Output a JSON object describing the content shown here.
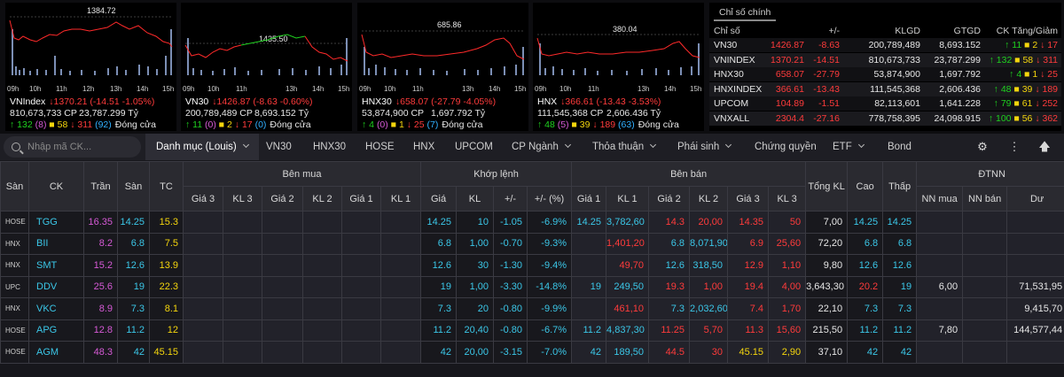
{
  "charts": [
    {
      "name": "VNIndex",
      "change": "↓1370.21 (-14.51 -1.05%)",
      "ref_label": "1384.72",
      "volume": "810,673,733 CP",
      "value": "23,787.299 Tỷ",
      "up": "↑ 132",
      "ref": "(8)",
      "ref2": "■ 58",
      "down": "↓ 311",
      "down2": "(92)",
      "status": "Đóng cửa",
      "hours": [
        "09h",
        "10h",
        "11h",
        "12h",
        "13h",
        "14h",
        "15h"
      ]
    },
    {
      "name": "VN30",
      "change": "↓1426.87 (-8.63 -0.60%)",
      "ref_label": "1435.50",
      "volume": "200,789,489 CP",
      "value": "8,693.152 Tỷ",
      "up": "↑ 11",
      "ref": "(0)",
      "ref2": "■ 2",
      "down": "↓ 17",
      "down2": "(0)",
      "status": "Đóng cửa",
      "hours": [
        "09h",
        "10h",
        "11h",
        "13h",
        "14h",
        "15h"
      ]
    },
    {
      "name": "HNX30",
      "change": "↓658.07 (-27.79 -4.05%)",
      "ref_label": "685.86",
      "volume": "53,874,900 CP",
      "value": "1,697.792 Tỷ",
      "up": "↑ 4",
      "ref": "(0)",
      "ref2": "■ 1",
      "down": "↓ 25",
      "down2": "(7)",
      "status": "Đóng cửa",
      "hours": [
        "09h",
        "10h",
        "11h",
        "13h",
        "14h",
        "15h"
      ]
    },
    {
      "name": "HNX",
      "change": "↓366.61 (-13.43 -3.53%)",
      "ref_label": "380.04",
      "volume": "111,545,368 CP",
      "value": "2,606.436 Tỷ",
      "up": "↑ 48",
      "ref": "(5)",
      "ref2": "■ 39",
      "down": "↓ 189",
      "down2": "(63)",
      "status": "Đóng cửa",
      "hours": [
        "09h",
        "10h",
        "11h",
        "13h",
        "14h",
        "15h"
      ]
    }
  ],
  "index_table": {
    "tab": "Chỉ số chính",
    "headers": {
      "name": "Chỉ số",
      "chg": "+/-",
      "klgd": "KLGD",
      "gtgd": "GTGD",
      "tg": "CK Tăng/Giảm"
    },
    "rows": [
      {
        "name": "VN30",
        "val": "1426.87",
        "chg": "-8.63",
        "klgd": "200,789,489",
        "gtgd": "8,693.152",
        "up": "↑ 11",
        "ref": "■ 2",
        "down": "↓ 17"
      },
      {
        "name": "VNINDEX",
        "val": "1370.21",
        "chg": "-14.51",
        "klgd": "810,673,733",
        "gtgd": "23,787.299",
        "up": "↑ 132",
        "ref": "■ 58",
        "down": "↓ 311"
      },
      {
        "name": "HNX30",
        "val": "658.07",
        "chg": "-27.79",
        "klgd": "53,874,900",
        "gtgd": "1,697.792",
        "up": "↑ 4",
        "ref": "■ 1",
        "down": "↓ 25"
      },
      {
        "name": "HNXINDEX",
        "val": "366.61",
        "chg": "-13.43",
        "klgd": "111,545,368",
        "gtgd": "2,606.436",
        "up": "↑ 48",
        "ref": "■ 39",
        "down": "↓ 189"
      },
      {
        "name": "UPCOM",
        "val": "104.89",
        "chg": "-1.51",
        "klgd": "82,113,601",
        "gtgd": "1,641.228",
        "up": "↑ 79",
        "ref": "■ 61",
        "down": "↓ 252"
      },
      {
        "name": "VNXALL",
        "val": "2304.4",
        "chg": "-27.16",
        "klgd": "778,758,395",
        "gtgd": "24,098.915",
        "up": "↑ 100",
        "ref": "■ 56",
        "down": "↓ 362"
      }
    ]
  },
  "toolbar": {
    "search_placeholder": "Nhập mã CK...",
    "tabs": [
      "Danh mục (Louis)",
      "VN30",
      "HNX30",
      "HOSE",
      "HNX",
      "UPCOM",
      "CP Ngành",
      "Thỏa thuận",
      "Phái sinh",
      "Chứng quyền",
      "ETF",
      "Bond"
    ]
  },
  "board": {
    "group_headers": {
      "ben_mua": "Bên mua",
      "khop_lenh": "Khớp lệnh",
      "ben_ban": "Bên bán",
      "dtnn": "ĐTNN"
    },
    "col_san": "Sàn",
    "col_ck": "CK",
    "col_tran": "Trần",
    "col_san_price": "Sàn",
    "col_tc": "TC",
    "buy_cols": [
      "Giá 3",
      "KL 3",
      "Giá 2",
      "KL 2",
      "Giá 1",
      "KL 1"
    ],
    "match_cols": [
      "Giá",
      "KL",
      "+/-",
      "+/- (%)"
    ],
    "sell_cols": [
      "Giá 1",
      "KL 1",
      "Giá 2",
      "KL 2",
      "Giá 3",
      "KL 3"
    ],
    "col_tong": "Tổng KL",
    "col_cao": "Cao",
    "col_thap": "Thấp",
    "dtnn_cols": [
      "NN mua",
      "NN bán",
      "Dư"
    ],
    "rows": [
      {
        "exch": "HOSE",
        "ck": "TGG",
        "tran": "16.35",
        "san": "14.25",
        "tc": "15.3",
        "gia": "14.25",
        "kl": "10",
        "chg": "-1.05",
        "pct": "-6.9%",
        "s1": "14.25",
        "sk1": "3,782,60",
        "s2": "14.3",
        "sk2": "20,00",
        "s3": "14.35",
        "sk3": "50",
        "tong": "7,00",
        "cao": "14.25",
        "thap": "14.25",
        "nnmua": "",
        "nnban": "",
        "du": ""
      },
      {
        "exch": "HNX",
        "ck": "BII",
        "tran": "8.2",
        "san": "6.8",
        "tc": "7.5",
        "gia": "6.8",
        "kl": "1,00",
        "chg": "-0.70",
        "pct": "-9.3%",
        "s1": "",
        "sk1": "1,401,20",
        "s2": "6.8",
        "sk2": "8,071,90",
        "s3": "6.9",
        "sk3": "25,60",
        "tong": "72,20",
        "cao": "6.8",
        "thap": "6.8",
        "nnmua": "",
        "nnban": "",
        "du": ""
      },
      {
        "exch": "HNX",
        "ck": "SMT",
        "tran": "15.2",
        "san": "12.6",
        "tc": "13.9",
        "gia": "12.6",
        "kl": "30",
        "chg": "-1.30",
        "pct": "-9.4%",
        "s1": "",
        "sk1": "49,70",
        "s2": "12.6",
        "sk2": "318,50",
        "s3": "12.9",
        "sk3": "1,10",
        "tong": "9,80",
        "cao": "12.6",
        "thap": "12.6",
        "nnmua": "",
        "nnban": "",
        "du": ""
      },
      {
        "exch": "UPC",
        "ck": "DDV",
        "tran": "25.6",
        "san": "19",
        "tc": "22.3",
        "gia": "19",
        "kl": "1,00",
        "chg": "-3.30",
        "pct": "-14.8%",
        "s1": "19",
        "sk1": "249,50",
        "s2": "19.3",
        "sk2": "1,00",
        "s3": "19.4",
        "sk3": "4,00",
        "tong": "3,643,30",
        "cao": "20.2",
        "thap": "19",
        "nnmua": "6,00",
        "nnban": "",
        "du": "71,531,95"
      },
      {
        "exch": "HNX",
        "ck": "VKC",
        "tran": "8.9",
        "san": "7.3",
        "tc": "8.1",
        "gia": "7.3",
        "kl": "20",
        "chg": "-0.80",
        "pct": "-9.9%",
        "s1": "",
        "sk1": "461,10",
        "s2": "7.3",
        "sk2": "2,032,60",
        "s3": "7.4",
        "sk3": "1,70",
        "tong": "22,10",
        "cao": "7.3",
        "thap": "7.3",
        "nnmua": "",
        "nnban": "",
        "du": "9,415,70"
      },
      {
        "exch": "HOSE",
        "ck": "APG",
        "tran": "12.8",
        "san": "11.2",
        "tc": "12",
        "gia": "11.2",
        "kl": "20,40",
        "chg": "-0.80",
        "pct": "-6.7%",
        "s1": "11.2",
        "sk1": "4,837,30",
        "s2": "11.25",
        "sk2": "5,70",
        "s3": "11.3",
        "sk3": "15,60",
        "tong": "215,50",
        "cao": "11.2",
        "thap": "11.2",
        "nnmua": "7,80",
        "nnban": "",
        "du": "144,577,44"
      },
      {
        "exch": "HOSE",
        "ck": "AGM",
        "tran": "48.3",
        "san": "42",
        "tc": "45.15",
        "gia": "42",
        "kl": "20,00",
        "chg": "-3.15",
        "pct": "-7.0%",
        "s1": "42",
        "sk1": "189,50",
        "s2": "44.5",
        "sk2": "30",
        "s3": "45.15",
        "sk3": "2,90",
        "tong": "37,10",
        "cao": "42",
        "thap": "42",
        "nnmua": "",
        "nnban": "",
        "du": ""
      }
    ]
  }
}
